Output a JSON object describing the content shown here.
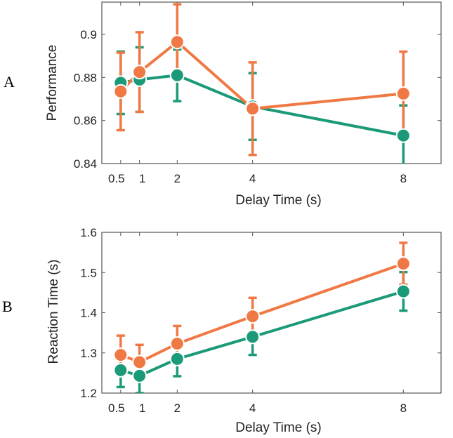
{
  "chart_data": [
    {
      "panel": "A",
      "type": "line",
      "xlabel": "Delay Time (s)",
      "ylabel": "Performance",
      "x": [
        0.5,
        1,
        2,
        4,
        8
      ],
      "x_tick_labels": [
        "0.5",
        "1",
        "2",
        "4",
        "8"
      ],
      "xlim": [
        0,
        9
      ],
      "ylim": [
        0.84,
        0.915
      ],
      "y_ticks": [
        0.84,
        0.86,
        0.88,
        0.9
      ],
      "y_tick_labels": [
        "0.84",
        "0.86",
        "0.88",
        "0.9"
      ],
      "grid": false,
      "series": [
        {
          "name": "green",
          "color": "#1a9a78",
          "values": [
            0.8775,
            0.879,
            0.881,
            0.8665,
            0.853
          ],
          "error": [
            0.0145,
            0.015,
            0.012,
            0.0155,
            0.014
          ]
        },
        {
          "name": "orange",
          "color": "#f07844",
          "values": [
            0.8735,
            0.8825,
            0.8965,
            0.8655,
            0.8725
          ],
          "error": [
            0.018,
            0.0185,
            0.0175,
            0.0215,
            0.0195
          ]
        }
      ]
    },
    {
      "panel": "B",
      "type": "line",
      "xlabel": "Delay Time (s)",
      "ylabel": "Reaction Time (s)",
      "x": [
        0.5,
        1,
        2,
        4,
        8
      ],
      "x_tick_labels": [
        "0.5",
        "1",
        "2",
        "4",
        "8"
      ],
      "xlim": [
        0,
        9
      ],
      "ylim": [
        1.2,
        1.6
      ],
      "y_ticks": [
        1.2,
        1.3,
        1.4,
        1.5,
        1.6
      ],
      "y_tick_labels": [
        "1.2",
        "1.3",
        "1.4",
        "1.5",
        "1.6"
      ],
      "grid": false,
      "series": [
        {
          "name": "green",
          "color": "#1a9a78",
          "values": [
            1.257,
            1.243,
            1.285,
            1.34,
            1.453
          ],
          "error": [
            0.042,
            0.043,
            0.043,
            0.045,
            0.048
          ]
        },
        {
          "name": "orange",
          "color": "#f07844",
          "values": [
            1.295,
            1.277,
            1.323,
            1.391,
            1.522
          ],
          "error": [
            0.048,
            0.043,
            0.044,
            0.046,
            0.052
          ]
        }
      ]
    }
  ]
}
